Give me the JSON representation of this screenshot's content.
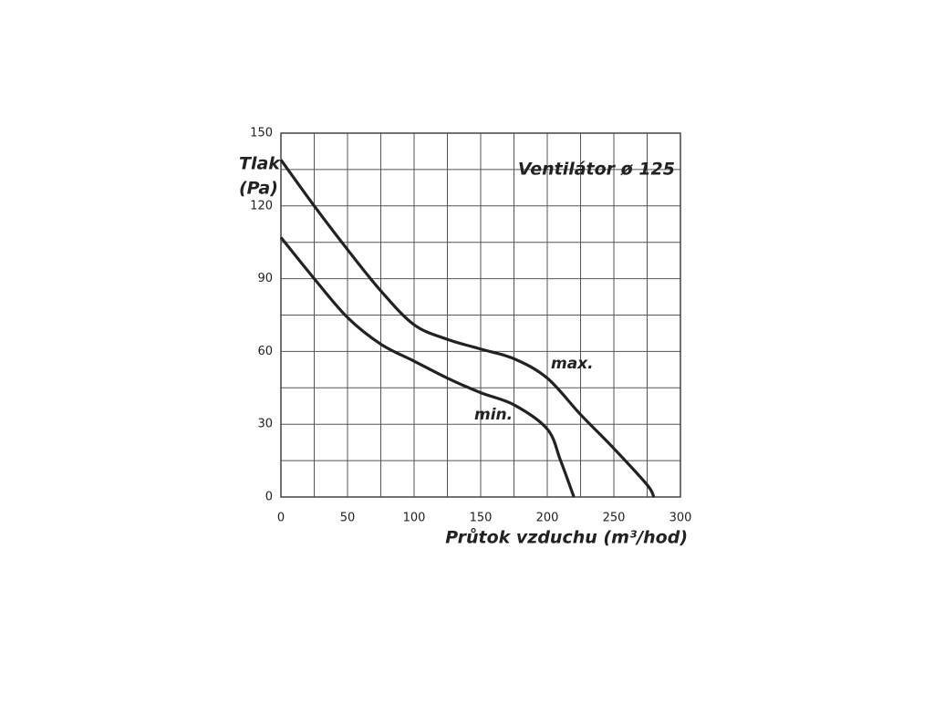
{
  "chart_data": {
    "type": "line",
    "title": "Ventilátor ø 125",
    "y_label": [
      "Tlak",
      "(Pa)"
    ],
    "x_label": "Průtok vzduchu (m³/hod)",
    "x": [
      0,
      25,
      50,
      75,
      100,
      125,
      150,
      175,
      200,
      225,
      250,
      275,
      280
    ],
    "series": [
      {
        "name": "max.",
        "color": "#222222",
        "values": [
          139,
          120,
          102,
          85,
          71,
          65,
          61,
          57,
          49,
          34,
          20,
          5,
          0
        ]
      },
      {
        "name": "min.",
        "color": "#222222",
        "values": [
          107,
          90,
          74,
          63,
          56,
          49,
          43,
          38,
          28,
          null,
          null,
          null,
          null
        ]
      }
    ],
    "extra_x": [
      210,
      220
    ],
    "extra_min": [
      15,
      0
    ],
    "xlim": [
      0,
      300
    ],
    "xticks": [
      0,
      50,
      100,
      150,
      200,
      250,
      300
    ],
    "ylim": [
      0,
      150
    ],
    "yticks": [
      0,
      30,
      60,
      90,
      120,
      150
    ],
    "grid": true,
    "minor_grid": true
  }
}
